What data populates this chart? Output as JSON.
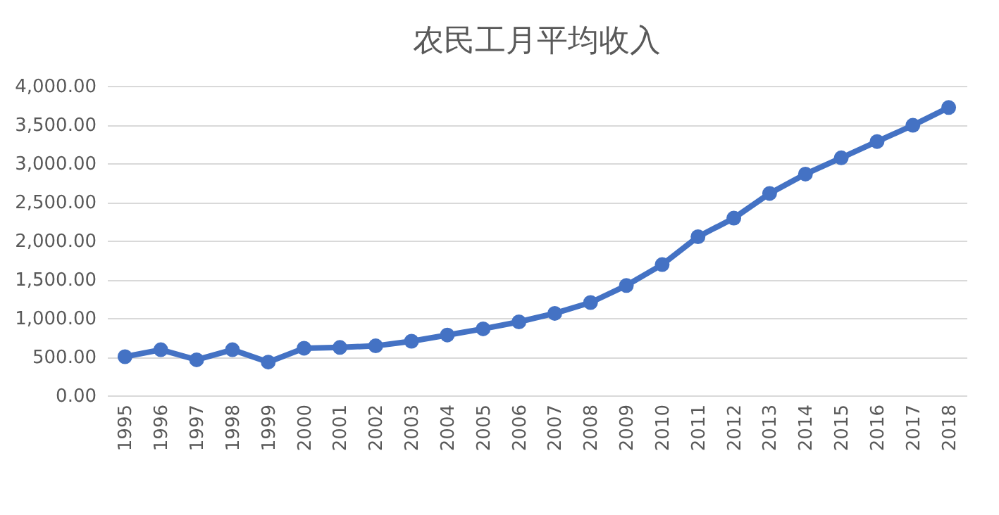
{
  "chart_data": {
    "type": "line",
    "title": "农民工月平均收入",
    "categories": [
      "1995",
      "1996",
      "1997",
      "1998",
      "1999",
      "2000",
      "2001",
      "2002",
      "2003",
      "2004",
      "2005",
      "2006",
      "2007",
      "2008",
      "2009",
      "2010",
      "2011",
      "2012",
      "2013",
      "2014",
      "2015",
      "2016",
      "2017",
      "2018"
    ],
    "series": [
      {
        "color": "#4472c4",
        "values": [
          500,
          590,
          460,
          590,
          430,
          610,
          620,
          640,
          700,
          780,
          860,
          950,
          1060,
          1200,
          1420,
          1690,
          2050,
          2290,
          2610,
          2860,
          3070,
          3280,
          3490,
          3720
        ]
      }
    ],
    "ylim": [
      0,
      4000
    ],
    "yticks": [
      {
        "value": 0,
        "label": "0.00"
      },
      {
        "value": 500,
        "label": "500.00"
      },
      {
        "value": 1000,
        "label": "1,000.00"
      },
      {
        "value": 1500,
        "label": "1,500.00"
      },
      {
        "value": 2000,
        "label": "2,000.00"
      },
      {
        "value": 2500,
        "label": "2,500.00"
      },
      {
        "value": 3000,
        "label": "3,000.00"
      },
      {
        "value": 3500,
        "label": "3,500.00"
      },
      {
        "value": 4000,
        "label": "4,000.00"
      }
    ],
    "grid": "y",
    "marker": "circle",
    "line_style": "solid"
  }
}
